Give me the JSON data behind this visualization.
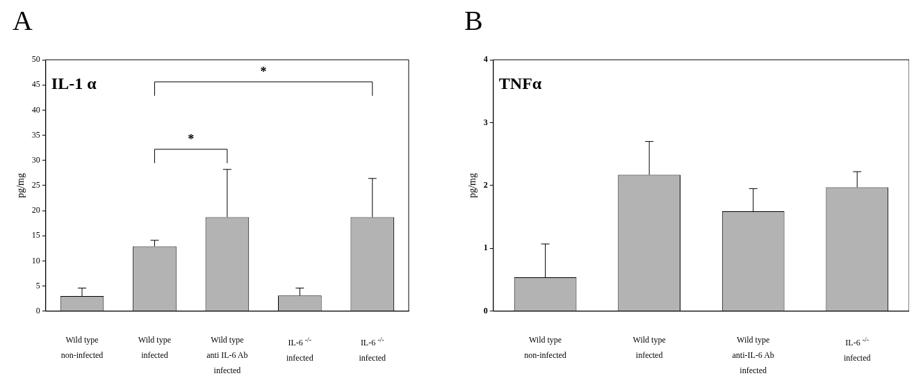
{
  "chart_data": [
    {
      "type": "bar",
      "title": "A",
      "ylabel": "pg/mg",
      "annotations": [
        "IL-1 α",
        "*",
        "*"
      ],
      "categories": [
        "Wild type\nnon-infected",
        "Wild type\ninfected",
        "Wild type\nanti IL-6 Ab\ninfected",
        "IL-6 $^{-/-}$\ninfected",
        "IL-6 $^{-/-}$\ninfected"
      ],
      "values": [
        3.0,
        12.9,
        18.7,
        3.1,
        18.7
      ],
      "errors": [
        [
          3.0,
          4.6
        ],
        [
          12.9,
          14.1
        ],
        [
          18.7,
          28.2
        ],
        [
          3.1,
          4.6
        ],
        [
          18.7,
          26.4
        ]
      ],
      "color": "#b3b3b3",
      "ylim": [
        0,
        50
      ],
      "yticks": [
        0,
        5,
        10,
        15,
        20,
        25,
        30,
        35,
        40,
        45,
        50
      ],
      "grid": false,
      "legend": false
    },
    {
      "type": "bar",
      "title": "B",
      "ylabel": "pg/mg",
      "annotations": [
        "TNFα"
      ],
      "categories": [
        "Wild type\nnon-infected",
        "Wild type\ninfected",
        "Wild type\nanti-IL-6 Ab\ninfected",
        "IL-6 $^{-/-}$\ninfected"
      ],
      "values": [
        0.54,
        2.17,
        1.59,
        1.97
      ],
      "errors": [
        [
          0.54,
          1.07
        ],
        [
          2.17,
          2.7
        ],
        [
          1.59,
          1.95
        ],
        [
          1.97,
          2.22
        ]
      ],
      "color": "#b3b3b3",
      "ylim": [
        0,
        4
      ],
      "yticks": [
        0,
        1,
        2,
        3,
        4
      ],
      "grid": false,
      "legend": false
    }
  ]
}
